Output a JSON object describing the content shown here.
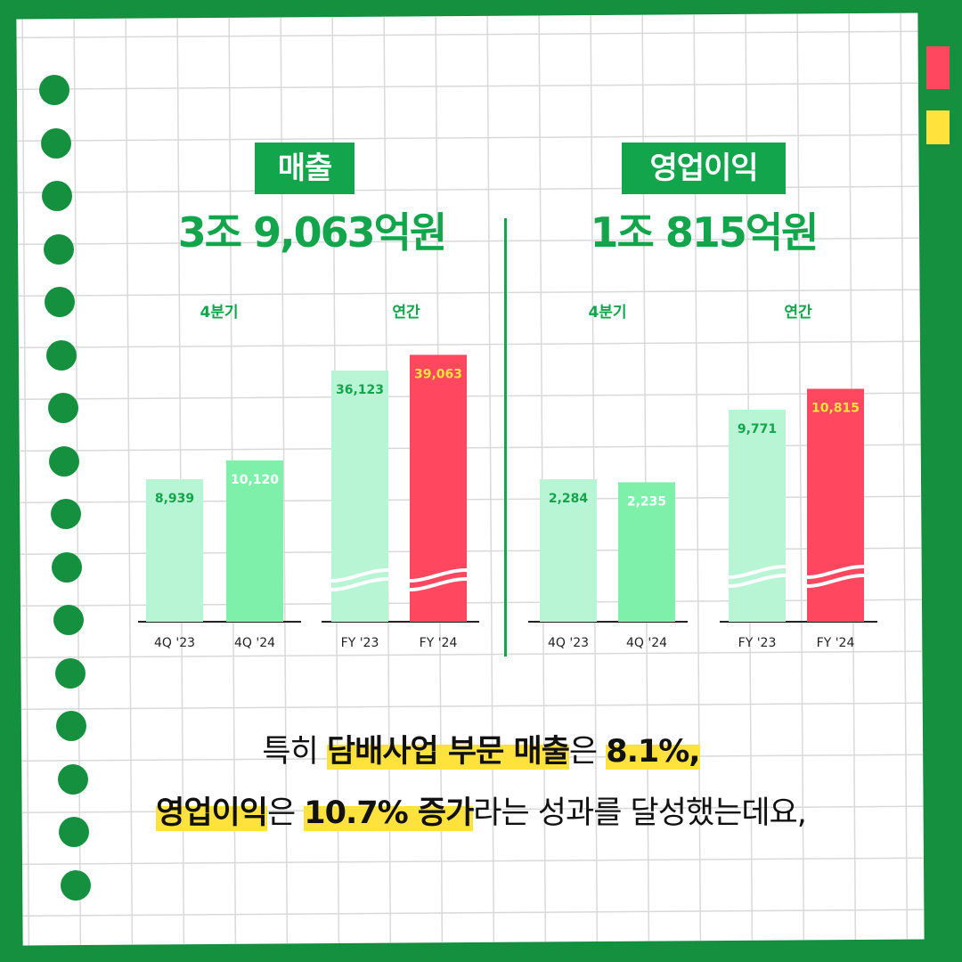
{
  "colors": {
    "background": "#14903e",
    "accent_green": "#12a54b",
    "bar_light": "#b8f5d4",
    "bar_mid": "#7ff0aa",
    "bar_highlight": "#ff4760",
    "highlight_yellow": "#ffe23b"
  },
  "revenue": {
    "label": "매출",
    "total": "3조 9,063억원"
  },
  "operating_profit": {
    "label": "영업이익",
    "total": "1조 815억원"
  },
  "chart_data": [
    {
      "type": "bar",
      "title": "매출",
      "groups": [
        {
          "name": "4분기",
          "categories": [
            "4Q '23",
            "4Q '24"
          ],
          "values": [
            8939,
            10120
          ],
          "labels": [
            "8,939",
            "10,120"
          ]
        },
        {
          "name": "연간",
          "categories": [
            "FY '23",
            "FY '24"
          ],
          "values": [
            36123,
            39063
          ],
          "labels": [
            "36,123",
            "39,063"
          ],
          "axis_break": true
        }
      ]
    },
    {
      "type": "bar",
      "title": "영업이익",
      "groups": [
        {
          "name": "4분기",
          "categories": [
            "4Q '23",
            "4Q '24"
          ],
          "values": [
            2284,
            2235
          ],
          "labels": [
            "2,284",
            "2,235"
          ]
        },
        {
          "name": "연간",
          "categories": [
            "FY '23",
            "FY '24"
          ],
          "values": [
            9771,
            10815
          ],
          "labels": [
            "9,771",
            "10,815"
          ],
          "axis_break": true
        }
      ]
    }
  ],
  "caption": {
    "line1": [
      "특히 ",
      "담배사업 부문 매출",
      "은 ",
      "8.1%,"
    ],
    "line2": [
      "영업이익",
      "은 ",
      "10.7% 증가",
      "라는 성과를 달성했는데요,"
    ]
  }
}
